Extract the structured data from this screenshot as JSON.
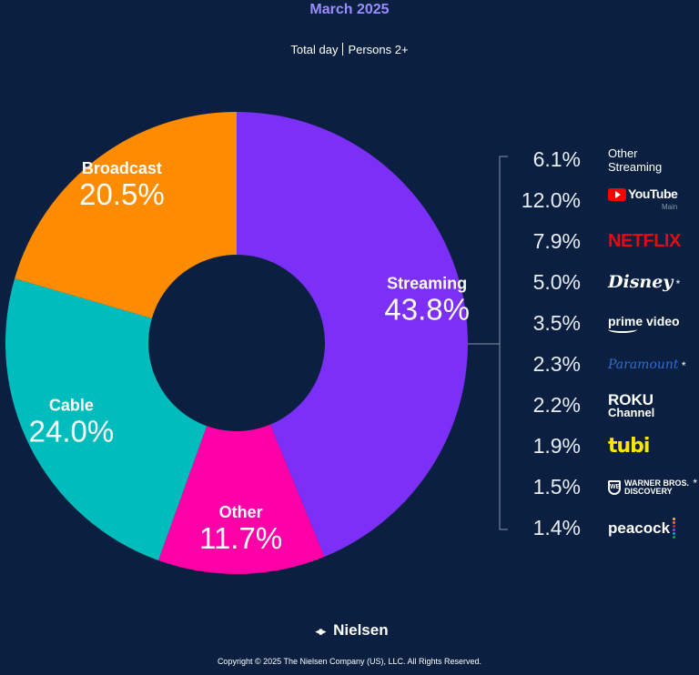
{
  "header": {
    "title": "March 2025",
    "subtitle_left": "Total day",
    "subtitle_right": "Persons 2+"
  },
  "chart_data": {
    "type": "pie",
    "donut": true,
    "title": "March 2025",
    "subtitle": "Total day | Persons 2+",
    "categories": [
      "Streaming",
      "Other",
      "Cable",
      "Broadcast"
    ],
    "values": [
      43.8,
      11.7,
      24.0,
      20.5
    ],
    "value_labels": [
      "43.8%",
      "11.7%",
      "24.0%",
      "20.5%"
    ],
    "colors": [
      "#7b2ff7",
      "#ff00a8",
      "#00bcbc",
      "#ff8c00"
    ],
    "breakdown": {
      "of": "Streaming",
      "items": [
        {
          "name": "Other Streaming",
          "value": 6.1,
          "label": "6.1%"
        },
        {
          "name": "YouTube Main",
          "value": 12.0,
          "label": "12.0%"
        },
        {
          "name": "Netflix",
          "value": 7.9,
          "label": "7.9%"
        },
        {
          "name": "Disney*",
          "value": 5.0,
          "label": "5.0%"
        },
        {
          "name": "Prime Video",
          "value": 3.5,
          "label": "3.5%"
        },
        {
          "name": "Paramount*",
          "value": 2.3,
          "label": "2.3%"
        },
        {
          "name": "Roku Channel",
          "value": 2.2,
          "label": "2.2%"
        },
        {
          "name": "Tubi",
          "value": 1.9,
          "label": "1.9%"
        },
        {
          "name": "Warner Bros. Discovery*",
          "value": 1.5,
          "label": "1.5%"
        },
        {
          "name": "Peacock",
          "value": 1.4,
          "label": "1.4%"
        }
      ]
    }
  },
  "legend": {
    "other_streaming_line1": "Other",
    "other_streaming_line2": "Streaming",
    "youtube": "YouTube",
    "youtube_sub": "Main",
    "netflix": "NETFLIX",
    "disney": "Disney",
    "prime": "prime video",
    "paramount": "Paramount",
    "roku_line1": "ROKU",
    "roku_line2": "Channel",
    "tubi": "tubi",
    "wbd_line1": "WARNER BROS.",
    "wbd_line2": "DISCOVERY",
    "peacock": "peacock",
    "asterisk": "*"
  },
  "footer": {
    "brand": "Nielsen",
    "copyright": "Copyright © 2025 The Nielsen Company (US), LLC. All Rights Reserved."
  }
}
